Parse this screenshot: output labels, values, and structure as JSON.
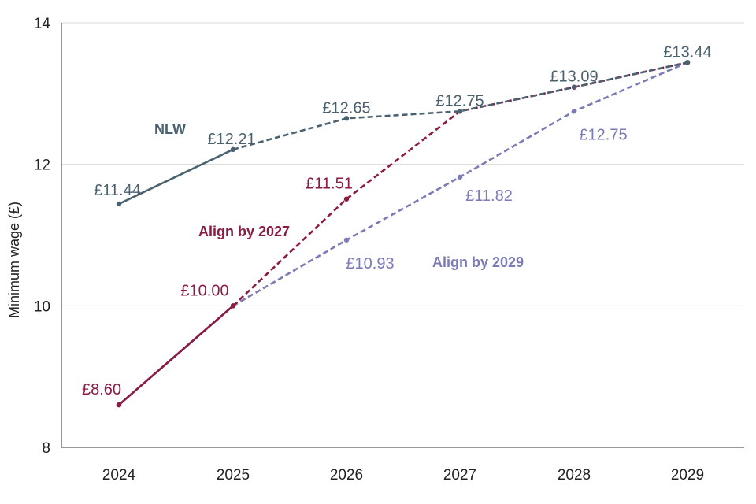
{
  "chart_data": {
    "type": "line",
    "ylabel": "Minimum wage  (£)",
    "xlabel": "",
    "title": "",
    "x": [
      "2024",
      "2025",
      "2026",
      "2027",
      "2028",
      "2029"
    ],
    "ylim": [
      8,
      14
    ],
    "yticks": [
      8,
      10,
      12,
      14
    ],
    "grid": "horizontal",
    "legend": "none",
    "series": [
      {
        "name": "NLW",
        "color": "#4a6270",
        "values": [
          11.44,
          12.21,
          12.65,
          12.75,
          13.09,
          13.44
        ],
        "labels": [
          "£11.44",
          "£12.21",
          "£12.65",
          "£12.75",
          "£13.09",
          "£13.44"
        ],
        "solid_until_index": 1
      },
      {
        "name": "Align by 2027",
        "color": "#8b1a45",
        "values": [
          8.6,
          10.0,
          11.51,
          12.75,
          13.09,
          13.44
        ],
        "labels": [
          "£8.60",
          "£10.00",
          "£11.51",
          "",
          "",
          ""
        ],
        "solid_until_index": 1
      },
      {
        "name": "Align by 2029",
        "color": "#7b7bb5",
        "values": [
          8.6,
          10.0,
          10.93,
          11.82,
          12.75,
          13.44
        ],
        "labels": [
          "",
          "",
          "£10.93",
          "£11.82",
          "£12.75",
          ""
        ],
        "solid_until_index": 1
      }
    ]
  }
}
